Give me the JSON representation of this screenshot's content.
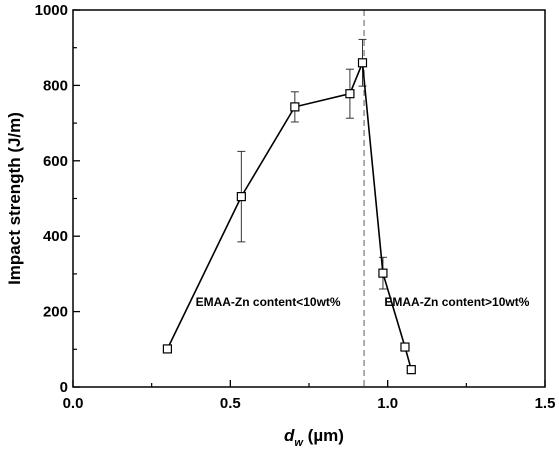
{
  "chart_data": {
    "type": "line",
    "xlabel_symbol": "d",
    "xlabel_subscript": "w",
    "xlabel_unit": " (µm)",
    "ylabel": "Impact strength (J/m)",
    "xlim": [
      0.0,
      1.5
    ],
    "ylim": [
      0,
      1000
    ],
    "xticks": [
      0.0,
      0.5,
      1.0,
      1.5
    ],
    "xtick_labels": [
      "0.0",
      "0.5",
      "1.0",
      "1.5"
    ],
    "yticks": [
      0,
      200,
      400,
      600,
      800,
      1000
    ],
    "ytick_labels": [
      "0",
      "200",
      "400",
      "600",
      "800",
      "1000"
    ],
    "grid": false,
    "marker": "open-square",
    "series": [
      {
        "points": [
          {
            "x": 0.3,
            "y": 101,
            "err": 8
          },
          {
            "x": 0.535,
            "y": 505,
            "err": 120
          },
          {
            "x": 0.705,
            "y": 743,
            "err": 40
          },
          {
            "x": 0.88,
            "y": 778,
            "err": 65
          },
          {
            "x": 0.92,
            "y": 860,
            "err": 62
          },
          {
            "x": 0.985,
            "y": 302,
            "err": 42
          },
          {
            "x": 1.055,
            "y": 106,
            "err": 6
          },
          {
            "x": 1.075,
            "y": 46,
            "err": 5
          }
        ]
      }
    ],
    "reference_line": {
      "x": 0.925,
      "style": "dashed"
    },
    "annotations": [
      {
        "text": "EMAA-Zn content<10wt%",
        "x": 0.62,
        "y": 225
      },
      {
        "text": "EMAA-Zn content>10wt%",
        "x": 1.22,
        "y": 225
      }
    ]
  }
}
